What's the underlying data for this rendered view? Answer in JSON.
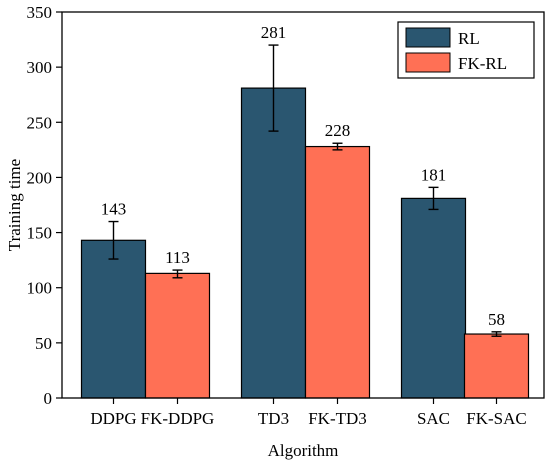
{
  "chart_data": {
    "type": "bar",
    "title": "",
    "xlabel": "Algorithm",
    "ylabel": "Training time",
    "ylim": [
      0,
      350
    ],
    "yticks": [
      0,
      50,
      100,
      150,
      200,
      250,
      300,
      350
    ],
    "grid": false,
    "legend_position": "top-right",
    "groups": [
      {
        "x": "DDPG",
        "series": "RL",
        "value": 143,
        "err_low": 126,
        "err_high": 160,
        "label": "143"
      },
      {
        "x": "FK-DDPG",
        "series": "FK-RL",
        "value": 113,
        "err_low": 109,
        "err_high": 116,
        "label": "113"
      },
      {
        "x": "TD3",
        "series": "RL",
        "value": 281,
        "err_low": 242,
        "err_high": 320,
        "label": "281"
      },
      {
        "x": "FK-TD3",
        "series": "FK-RL",
        "value": 228,
        "err_low": 225,
        "err_high": 231,
        "label": "228"
      },
      {
        "x": "SAC",
        "series": "RL",
        "value": 181,
        "err_low": 171,
        "err_high": 191,
        "label": "181"
      },
      {
        "x": "FK-SAC",
        "series": "FK-RL",
        "value": 58,
        "err_low": 56,
        "err_high": 60,
        "label": "58"
      }
    ],
    "legend": [
      {
        "name": "RL",
        "color": "#2a5670"
      },
      {
        "name": "FK-RL",
        "color": "#ff7055"
      }
    ]
  }
}
